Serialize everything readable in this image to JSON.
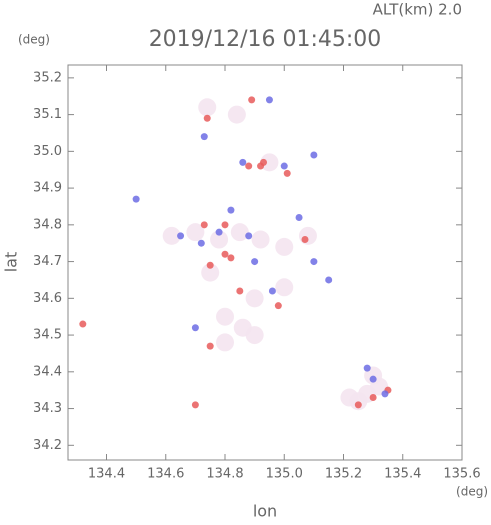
{
  "chart_data": {
    "type": "scatter",
    "title": "2019/12/16 01:45:00",
    "subtitle": "ALT(km) 2.0",
    "y_unit": "(deg)",
    "x_unit": "(deg)",
    "x_label": "lon",
    "y_label": "lat",
    "xlim": [
      134.27,
      135.6
    ],
    "ylim": [
      34.16,
      35.235
    ],
    "xticks": [
      134.4,
      134.6,
      134.8,
      {
        "value": 135.0,
        "label": "135.0"
      },
      135.2,
      135.4,
      135.6
    ],
    "yticks": [
      34.2,
      34.3,
      34.4,
      34.5,
      34.6,
      34.7,
      34.8,
      34.9,
      {
        "value": 35.0,
        "label": "35.0"
      },
      35.1,
      35.2
    ],
    "series": [
      {
        "color": "#f4e4f0",
        "x": [
          134.62,
          134.7,
          134.78,
          134.85,
          134.92,
          135.0,
          135.08,
          134.8,
          134.86,
          134.9,
          134.8,
          135.28,
          135.25,
          135.32,
          135.22,
          134.9,
          135.0,
          134.95,
          134.84,
          134.74,
          134.75,
          135.3
        ],
        "values": [
          34.77,
          34.78,
          34.76,
          34.78,
          34.76,
          34.74,
          34.77,
          34.55,
          34.52,
          34.5,
          34.48,
          34.34,
          34.32,
          34.36,
          34.33,
          34.6,
          34.63,
          34.97,
          35.1,
          35.12,
          34.67,
          34.39
        ]
      },
      {
        "color": "#e85a5a",
        "x": [
          134.89,
          134.74,
          134.88,
          134.93,
          134.8,
          134.8,
          134.75,
          134.82,
          134.75,
          135.3,
          135.35,
          134.7,
          134.73,
          135.07,
          134.98,
          134.85,
          135.25,
          134.32,
          134.92,
          135.01
        ],
        "values": [
          35.14,
          35.09,
          34.96,
          34.97,
          34.72,
          34.8,
          34.69,
          34.71,
          34.47,
          34.33,
          34.35,
          34.31,
          34.8,
          34.76,
          34.58,
          34.62,
          34.31,
          34.53,
          34.96,
          34.94
        ]
      },
      {
        "color": "#6c6ce4",
        "x": [
          134.95,
          134.73,
          135.1,
          134.86,
          135.0,
          134.78,
          134.82,
          134.88,
          134.72,
          135.05,
          135.1,
          135.15,
          134.7,
          135.3,
          135.34,
          135.28,
          134.5,
          134.9,
          134.65,
          134.96
        ],
        "values": [
          35.14,
          35.04,
          34.99,
          34.97,
          34.96,
          34.78,
          34.84,
          34.77,
          34.75,
          34.82,
          34.7,
          34.65,
          34.52,
          34.38,
          34.34,
          34.41,
          34.87,
          34.7,
          34.77,
          34.62
        ]
      }
    ]
  }
}
